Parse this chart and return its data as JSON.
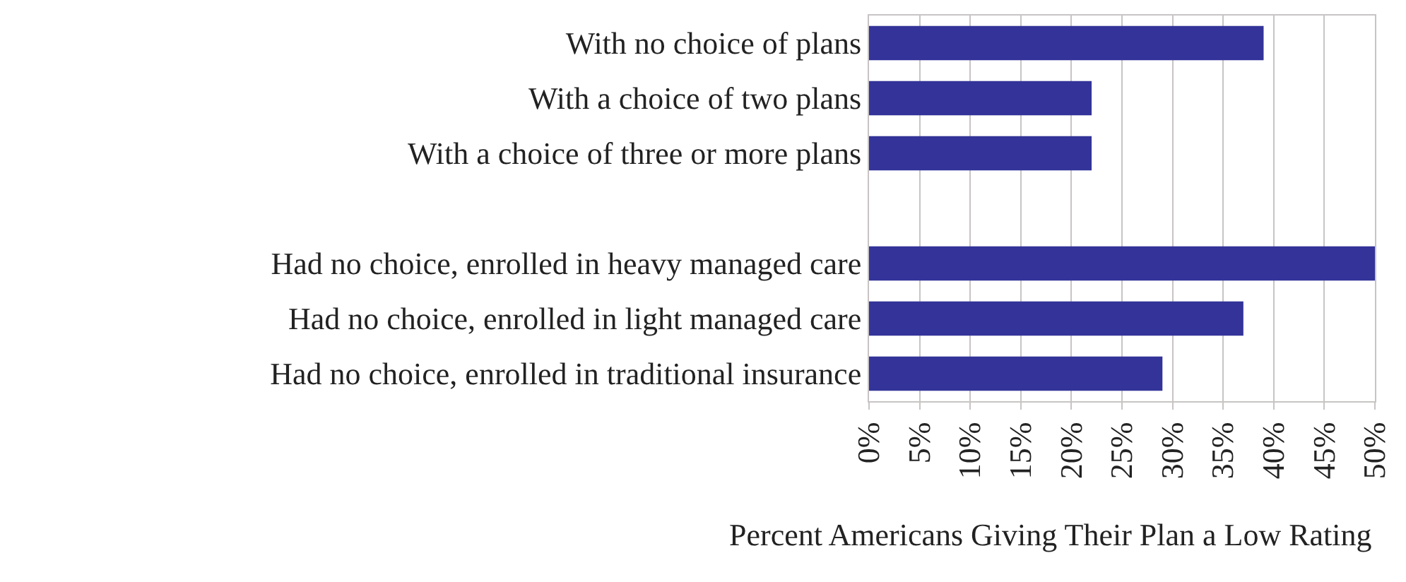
{
  "chart_data": {
    "type": "bar",
    "orientation": "horizontal",
    "xlabel": "Percent Americans Giving Their Plan a Low Rating",
    "categories": [
      "With no choice of plans",
      "With a choice of two plans",
      "With a choice of three or more plans",
      null,
      "Had no choice, enrolled in heavy managed care",
      "Had no choice, enrolled in light managed care",
      "Had no choice, enrolled in traditional insurance"
    ],
    "values": [
      39,
      22,
      22,
      null,
      50,
      37,
      29
    ],
    "color": "#333399",
    "xlim": [
      0,
      50
    ],
    "xticks": [
      {
        "value": 0,
        "label": "0%"
      },
      {
        "value": 5,
        "label": "5%"
      },
      {
        "value": 10,
        "label": "10%"
      },
      {
        "value": 15,
        "label": "15%"
      },
      {
        "value": 20,
        "label": "20%"
      },
      {
        "value": 25,
        "label": "25%"
      },
      {
        "value": 30,
        "label": "30%"
      },
      {
        "value": 35,
        "label": "35%"
      },
      {
        "value": 40,
        "label": "40%"
      },
      {
        "value": 45,
        "label": "45%"
      },
      {
        "value": 50,
        "label": "50%"
      }
    ],
    "grid": "x"
  }
}
